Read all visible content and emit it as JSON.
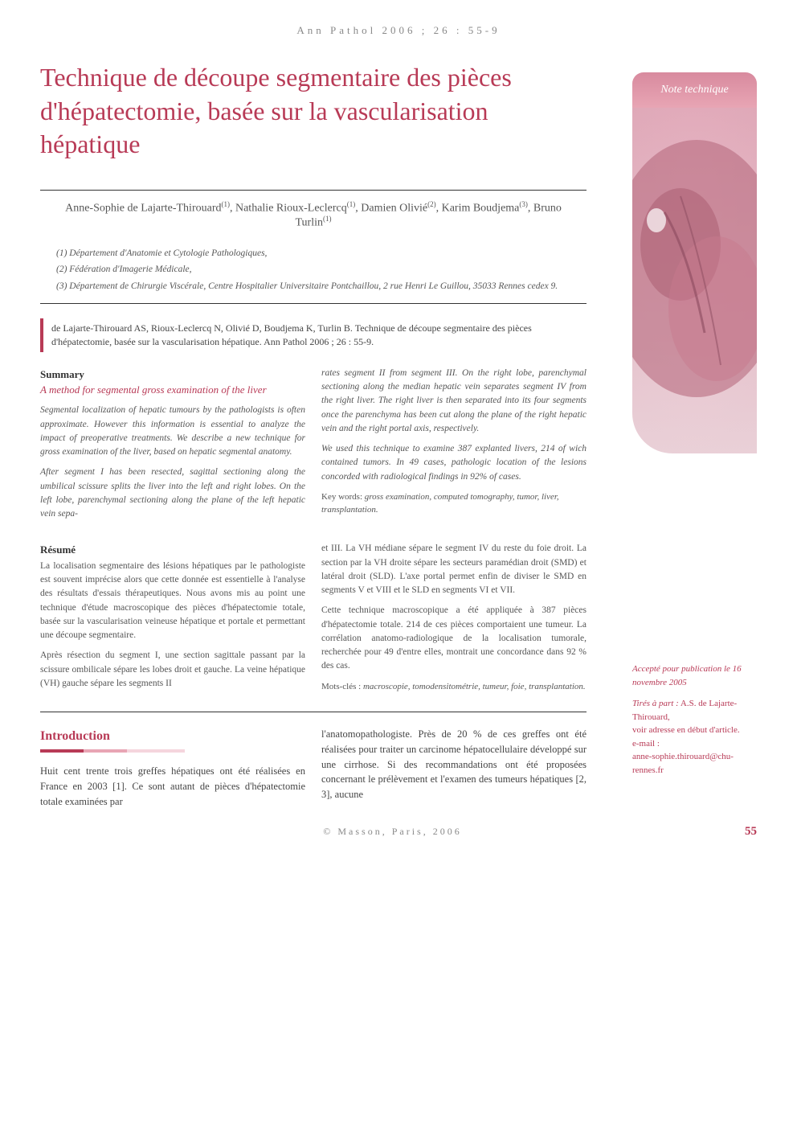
{
  "running_header": "Ann Pathol 2006 ; 26 : 55-9",
  "title": "Technique de découpe segmentaire des pièces d'hépatectomie, basée sur la vascularisation hépatique",
  "note_technique": "Note technique",
  "authors_html": "Anne-Sophie de Lajarte-Thirouard<sup>(1)</sup>, Nathalie Rioux-Leclercq<sup>(1)</sup>, Damien Olivié<sup>(2)</sup>, Karim Boudjema<sup>(3)</sup>, Bruno Turlin<sup>(1)</sup>",
  "affiliations": [
    "(1) Département d'Anatomie et Cytologie Pathologiques,",
    "(2) Fédération d'Imagerie Médicale,",
    "(3) Département de Chirurgie Viscérale, Centre Hospitalier Universitaire Pontchaillou, 2 rue Henri Le Guillou, 35033 Rennes cedex 9."
  ],
  "citation": "de Lajarte-Thirouard AS, Rioux-Leclercq N, Olivié D, Boudjema K, Turlin B. Technique de découpe segmentaire des pièces d'hépatectomie, basée sur la vascularisation hépatique. Ann Pathol 2006 ; 26 : 55-9.",
  "summary": {
    "heading": "Summary",
    "subheading": "A method for segmental gross examination of the liver",
    "para1": "Segmental localization of hepatic tumours by the pathologists is often approximate. However this information is essential to analyze the impact of preoperative treatments. We describe a new technique for gross examination of the liver, based on hepatic segmental anatomy.",
    "para2": "After segment I has been resected, sagittal sectioning along the umbilical scissure splits the liver into the left and right lobes. On the left lobe, parenchymal sectioning along the plane of the left hepatic vein sepa-",
    "para2_cont": "rates segment II from segment III. On the right lobe, parenchymal sectioning along the median hepatic vein separates segment IV from the right liver. The right liver is then separated into its four segments once the parenchyma has been cut along the plane of the right hepatic vein and the right portal axis, respectively.",
    "para3": "We used this technique to examine 387 explanted livers, 214 of wich contained tumors. In 49 cases, pathologic location of the lesions concorded with radiological findings in 92% of cases.",
    "keywords_label": "Key words:",
    "keywords": "gross examination, computed tomography, tumor, liver, transplantation."
  },
  "resume": {
    "heading": "Résumé",
    "para1": "La localisation segmentaire des lésions hépatiques par le pathologiste est souvent imprécise alors que cette donnée est essentielle à l'analyse des résultats d'essais thérapeutiques. Nous avons mis au point une technique d'étude macroscopique des pièces d'hépatectomie totale, basée sur la vascularisation veineuse hépatique et portale et permettant une découpe segmentaire.",
    "para2": "Après résection du segment I, une section sagittale passant par la scissure ombilicale sépare les lobes droit et gauche. La veine hépatique (VH) gauche sépare les segments II",
    "para2_cont": "et III. La VH médiane sépare le segment IV du reste du foie droit. La section par la VH droite sépare les secteurs paramédian droit (SMD) et latéral droit (SLD). L'axe portal permet enfin de diviser le SMD en segments V et VIII et le SLD en segments VI et VII.",
    "para3": "Cette technique macroscopique a été appliquée à 387 pièces d'hépatectomie totale. 214 de ces pièces comportaient une tumeur. La corrélation anatomo-radiologique de la localisation tumorale, recherchée pour 49 d'entre elles, montrait une concordance dans 92 % des cas.",
    "keywords_label": "Mots-clés :",
    "keywords": "macroscopie, tomodensitométrie, tumeur, foie, transplantation."
  },
  "introduction": {
    "heading": "Introduction",
    "col1": "Huit cent trente trois greffes hépatiques ont été réalisées en France en 2003 [1]. Ce sont autant de pièces d'hépatectomie totale examinées par",
    "col2": "l'anatomopathologiste. Près de 20 % de ces greffes ont été réalisées pour traiter un carcinome hépatocellulaire développé sur une cirrhose. Si des recommandations ont été proposées concernant le prélèvement et l'examen des tumeurs hépatiques [2, 3], aucune"
  },
  "sidebar_info": {
    "accepted": "Accepté pour publication le 16 novembre 2005",
    "offprint_label": "Tirés à part :",
    "offprint_name": "A.S. de Lajarte-Thirouard,",
    "offprint_addr": "voir adresse en début d'article.",
    "email_label": "e-mail :",
    "email": "anne-sophie.thirouard@chu-rennes.fr"
  },
  "footer": {
    "copyright": "© Masson, Paris, 2006",
    "page": "55"
  },
  "colors": {
    "accent": "#b83a56",
    "side_bg": "#e8a5b4",
    "text_body": "#4a4a4a"
  }
}
